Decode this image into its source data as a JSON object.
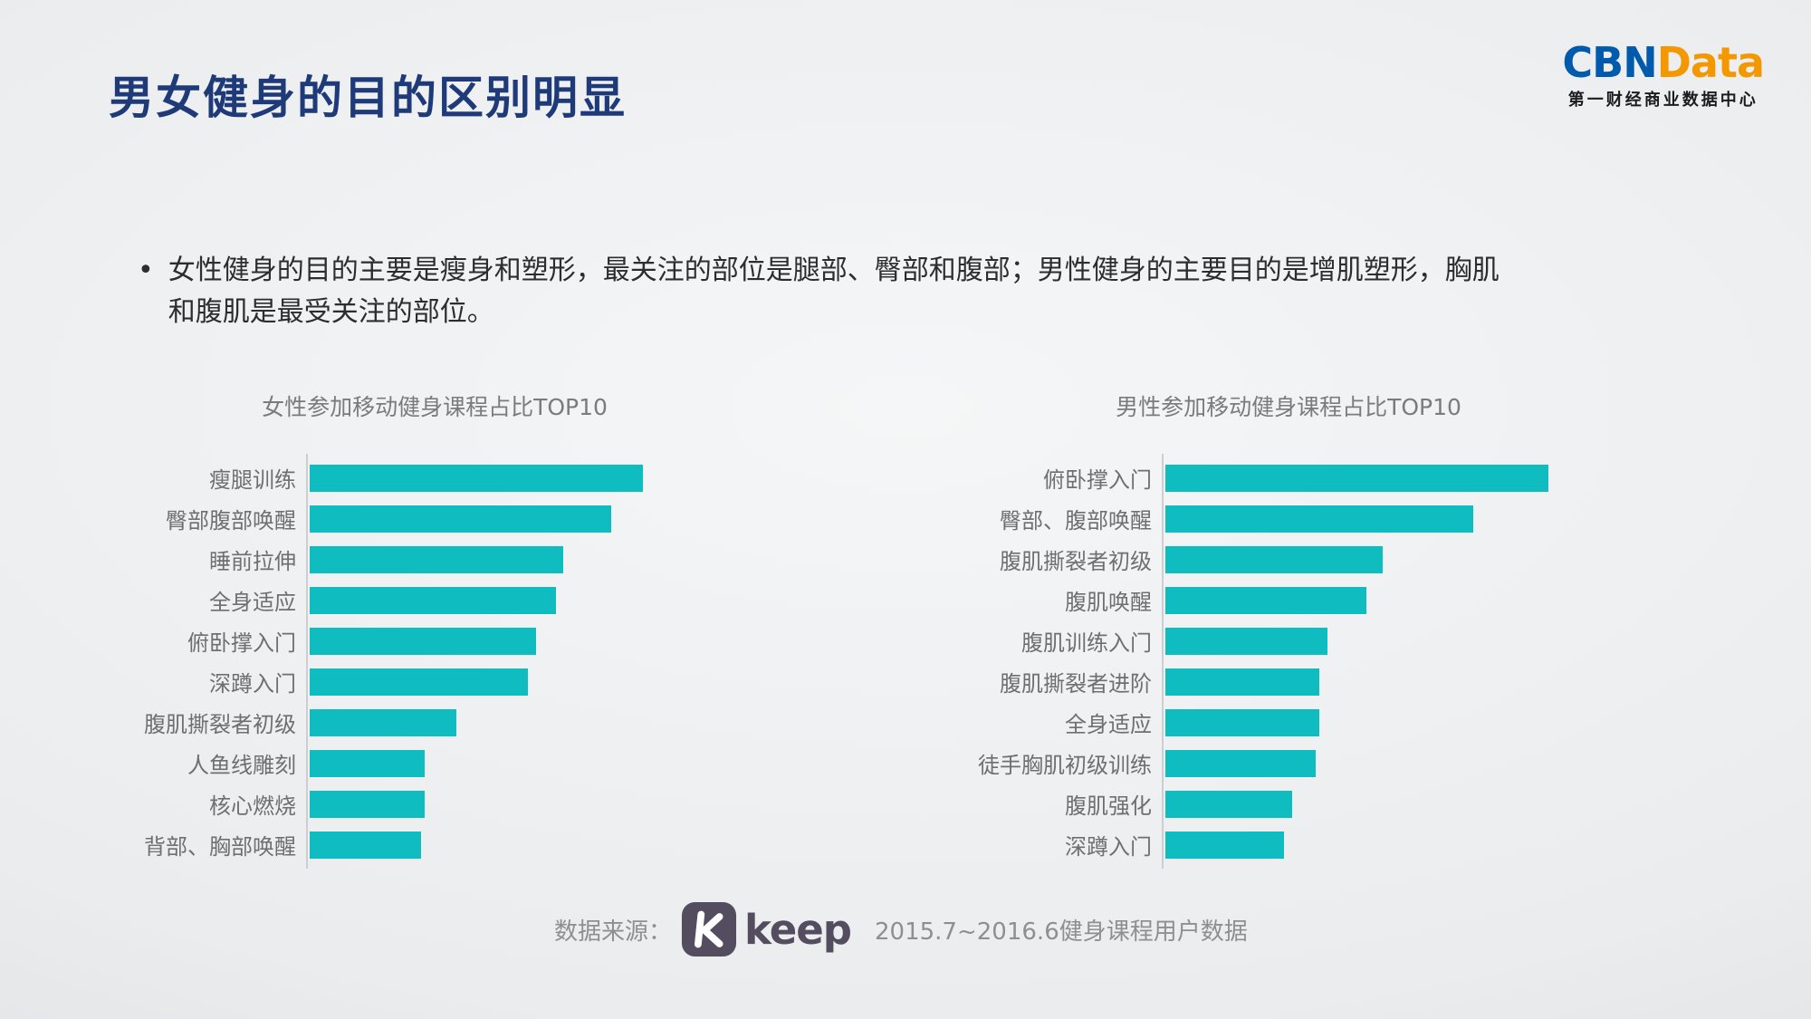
{
  "slide": {
    "title": "男女健身的目的区别明显",
    "bullet_char": "•",
    "bullet_text": "女性健身的目的主要是瘦身和塑形，最关注的部位是腿部、臀部和腹部；男性健身的主要目的是增肌塑形，胸肌\n和腹肌是最受关注的部位。"
  },
  "logo": {
    "cbn": "CBN",
    "data": "Data",
    "subtitle": "第一财经商业数据中心"
  },
  "footer": {
    "source_label": "数据来源：",
    "keep_wordmark": "keep",
    "period": "2015.7~2016.6健身课程用户数据"
  },
  "colors": {
    "accent_bar": "#0fbcbf",
    "title_navy": "#1e3a78",
    "cbn_blue": "#005bac",
    "data_orange": "#f39800",
    "keep_dark": "#534d5f"
  },
  "chart_data": [
    {
      "type": "bar",
      "orientation": "horizontal",
      "title": "女性参加移动健身课程占比TOP10",
      "categories": [
        "瘦腿训练",
        "臀部腹部唤醒",
        "睡前拉伸",
        "全身适应",
        "俯卧撑入门",
        "深蹲入门",
        "腹肌撕裂者初级",
        "人鱼线雕刻",
        "核心燃烧",
        "背部、胸部唤醒"
      ],
      "values": [
        84,
        76,
        64,
        62,
        57,
        55,
        37,
        29,
        29,
        28
      ],
      "value_scale": "relative bar length, % of plot width (no numeric axis shown in source)",
      "xlim": [
        0,
        100
      ],
      "xlabel": "",
      "ylabel": "",
      "grid": false,
      "legend": false,
      "value_labels_shown": false
    },
    {
      "type": "bar",
      "orientation": "horizontal",
      "title": "男性参加移动健身课程占比TOP10",
      "categories": [
        "俯卧撑入门",
        "臀部、腹部唤醒",
        "腹肌撕裂者初级",
        "腹肌唤醒",
        "腹肌训练入门",
        "腹肌撕裂者进阶",
        "全身适应",
        "徒手胸肌初级训练",
        "腹肌强化",
        "深蹲入门"
      ],
      "values": [
        97,
        78,
        55,
        51,
        41,
        39,
        39,
        38,
        32,
        30
      ],
      "value_scale": "relative bar length, % of plot width (no numeric axis shown in source)",
      "xlim": [
        0,
        100
      ],
      "xlabel": "",
      "ylabel": "",
      "grid": false,
      "legend": false,
      "value_labels_shown": false
    }
  ]
}
